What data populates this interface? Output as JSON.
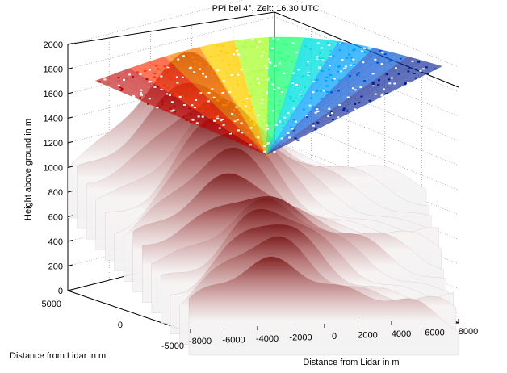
{
  "chart_data": {
    "type": "surface",
    "title": "PPI bei 4°, Zeit: 16.30 UTC",
    "zlabel": "Height above ground in m",
    "xlabel": "Distance from Lidar in m",
    "ylabel": "Distance from  Lidar in m",
    "zlim": [
      0,
      2000
    ],
    "z_ticks": [
      "0",
      "200",
      "400",
      "600",
      "800",
      "1000",
      "1200",
      "1400",
      "1600",
      "1800",
      "2000"
    ],
    "xlim": [
      -8000,
      8000
    ],
    "x_ticks": [
      "-8000",
      "-6000",
      "-4000",
      "-2000",
      "0",
      "2000",
      "4000",
      "6000",
      "8000"
    ],
    "ylim": [
      -5000,
      5000
    ],
    "y_ticks": [
      "5000",
      "0",
      "-5000"
    ],
    "grid": true,
    "scan": {
      "elevation_deg": 4,
      "apex_height_m": 1100,
      "colormap": "jet"
    },
    "terrain": {
      "colormap": "white-to-brown",
      "height_range_m": [
        200,
        1100
      ]
    }
  }
}
